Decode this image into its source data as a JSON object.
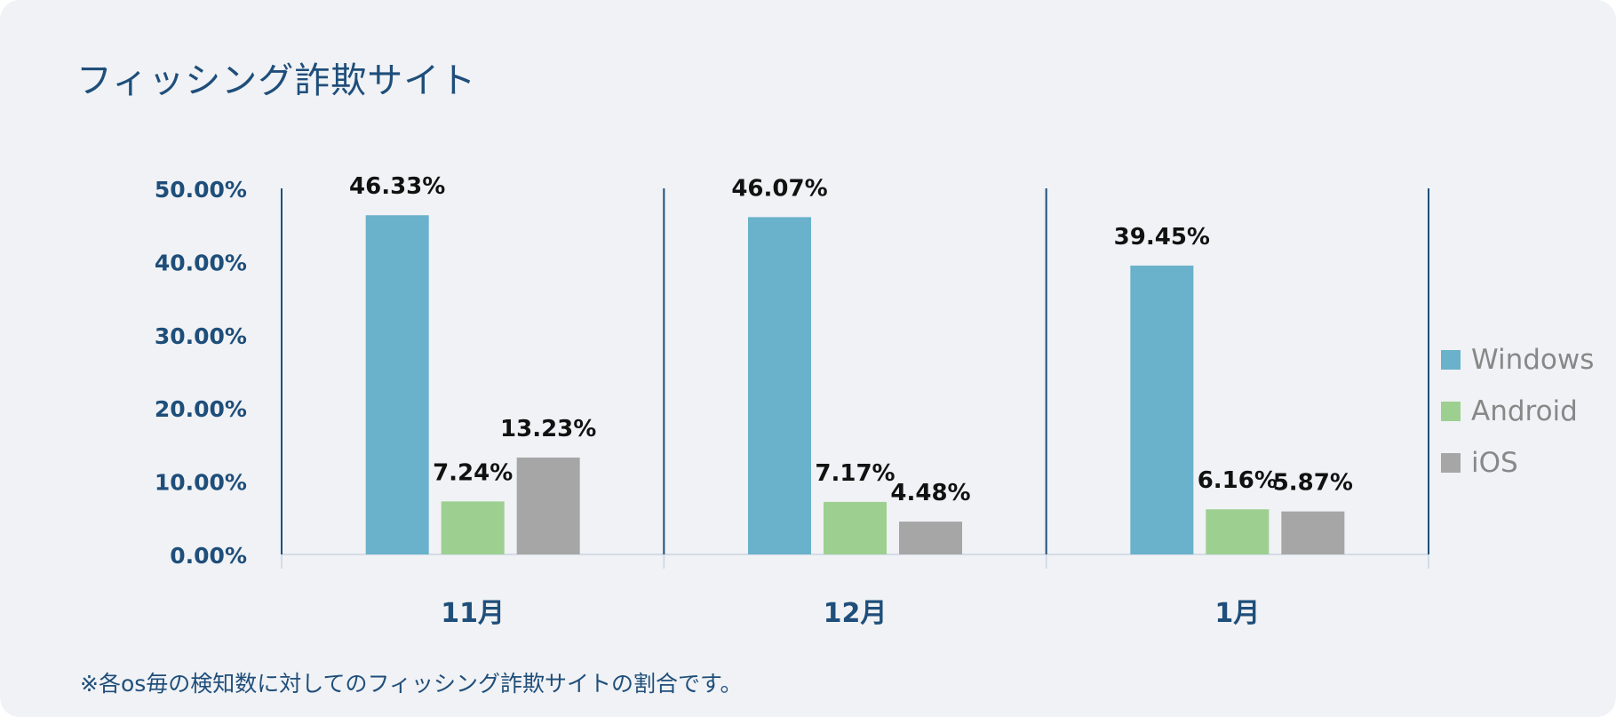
{
  "title": "フィッシング詐欺サイト",
  "footnote": "※各os毎の検知数に対してのフィッシング詐欺サイトの割合です。",
  "colors": {
    "Windows": "#6ab1cb",
    "Android": "#9dcf91",
    "iOS": "#a6a6a6",
    "axis": "#1f4e7a",
    "data_label": "#111111"
  },
  "chart_data": {
    "type": "bar",
    "categories": [
      "11月",
      "12月",
      "1月"
    ],
    "series": [
      {
        "name": "Windows",
        "values": [
          46.33,
          46.07,
          39.45
        ],
        "labels": [
          "46.33%",
          "46.07%",
          "39.45%"
        ]
      },
      {
        "name": "Android",
        "values": [
          7.24,
          7.17,
          6.16
        ],
        "labels": [
          "7.24%",
          "7.17%",
          "6.16%"
        ]
      },
      {
        "name": "iOS",
        "values": [
          13.23,
          4.48,
          5.87
        ],
        "labels": [
          "13.23%",
          "4.48%",
          "5.87%"
        ]
      }
    ],
    "y_ticks": [
      0,
      10,
      20,
      30,
      40,
      50
    ],
    "y_tick_labels": [
      "0.00%",
      "10.00%",
      "20.00%",
      "30.00%",
      "40.00%",
      "50.00%"
    ],
    "ylim": [
      0,
      50
    ],
    "legend_position": "right",
    "grid": false
  }
}
